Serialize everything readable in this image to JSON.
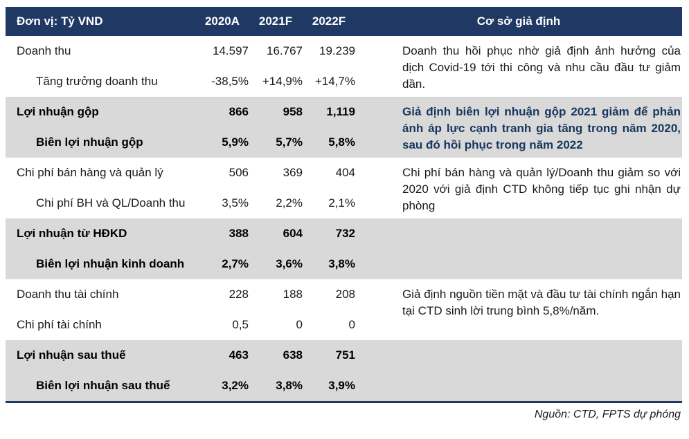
{
  "colors": {
    "header_bg": "#1F3864",
    "band_gray": "#D9D9D9",
    "note_bold_text": "#17375E"
  },
  "header": {
    "unit_label": "Đơn vị: Tỷ VND",
    "columns": [
      "2020A",
      "2021F",
      "2022F"
    ],
    "assumptions_label": "Cơ sở giả định"
  },
  "sections": [
    {
      "bg": "white",
      "rows": [
        {
          "label": "Doanh thu",
          "indent": false,
          "bold": false,
          "values": [
            "14.597",
            "16.767",
            "19.239"
          ]
        },
        {
          "label": "Tăng trưởng doanh thu",
          "indent": true,
          "bold": false,
          "values": [
            "-38,5%",
            "+14,9%",
            "+14,7%"
          ]
        }
      ],
      "note": "Doanh thu hồi phục nhờ giả định ảnh hưởng của dịch Covid-19 tới thi công và nhu cầu đầu tư giảm dần.",
      "note_bold": false
    },
    {
      "bg": "gray",
      "rows": [
        {
          "label": "Lợi nhuận gộp",
          "indent": false,
          "bold": true,
          "values": [
            "866",
            "958",
            "1,119"
          ]
        },
        {
          "label": "Biên lợi nhuận gộp",
          "indent": true,
          "bold": true,
          "values": [
            "5,9%",
            "5,7%",
            "5,8%"
          ]
        }
      ],
      "note": "Giả định biên lợi nhuận gộp 2021 giảm để phản ánh áp lực cạnh tranh gia tăng trong năm 2020, sau đó hồi phục trong năm 2022",
      "note_bold": true
    },
    {
      "bg": "white",
      "rows": [
        {
          "label": "Chi phí bán hàng và quản lý",
          "indent": false,
          "bold": false,
          "values": [
            "506",
            "369",
            "404"
          ]
        },
        {
          "label": "Chi phí BH và QL/Doanh thu",
          "indent": true,
          "bold": false,
          "values": [
            "3,5%",
            "2,2%",
            "2,1%"
          ]
        }
      ],
      "note": "Chi phí bán hàng và quản lý/Doanh thu giảm so với 2020 với giả định CTD không tiếp tục ghi nhận dự phòng",
      "note_bold": false
    },
    {
      "bg": "gray",
      "rows": [
        {
          "label": "Lợi nhuận từ HĐKD",
          "indent": false,
          "bold": true,
          "values": [
            "388",
            "604",
            "732"
          ]
        },
        {
          "label": "Biên lợi nhuận kinh doanh",
          "indent": true,
          "bold": true,
          "values": [
            "2,7%",
            "3,6%",
            "3,8%"
          ]
        }
      ],
      "note": "",
      "note_bold": false
    },
    {
      "bg": "white",
      "rows": [
        {
          "label": "Doanh thu tài chính",
          "indent": false,
          "bold": false,
          "values": [
            "228",
            "188",
            "208"
          ]
        },
        {
          "label": "Chi phí tài chính",
          "indent": false,
          "bold": false,
          "values": [
            "0,5",
            "0",
            "0"
          ]
        }
      ],
      "note": "Giả định nguồn tiền mặt và đầu tư tài chính ngắn hạn tại CTD sinh lời trung bình 5,8%/năm.",
      "note_bold": false
    },
    {
      "bg": "gray",
      "rows": [
        {
          "label": "Lợi nhuận sau thuế",
          "indent": false,
          "bold": true,
          "values": [
            "463",
            "638",
            "751"
          ]
        },
        {
          "label": "Biên lợi nhuận sau thuế",
          "indent": true,
          "bold": true,
          "values": [
            "3,2%",
            "3,8%",
            "3,9%"
          ]
        }
      ],
      "note": "",
      "note_bold": false
    }
  ],
  "footer": {
    "source": "Nguồn: CTD, FPTS dự phóng"
  }
}
